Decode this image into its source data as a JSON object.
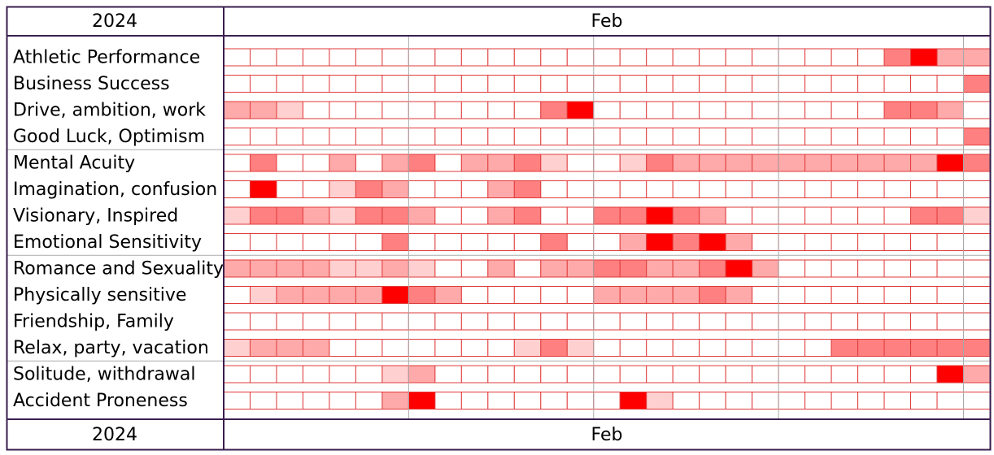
{
  "chart_data": {
    "type": "heatmap",
    "year": "2024",
    "month": "Feb",
    "levels": [
      "#ffffff",
      "#ffd0d0",
      "#ffaaaa",
      "#ff8080",
      "#ff0000"
    ],
    "series": [
      {
        "name": "Athletic Performance",
        "values": [
          0,
          0,
          0,
          0,
          0,
          0,
          0,
          0,
          0,
          0,
          0,
          0,
          0,
          0,
          0,
          0,
          0,
          0,
          0,
          0,
          0,
          0,
          0,
          0,
          0,
          3,
          4,
          2,
          2
        ]
      },
      {
        "name": "Business Success",
        "values": [
          0,
          0,
          0,
          0,
          0,
          0,
          0,
          0,
          0,
          0,
          0,
          0,
          0,
          0,
          0,
          0,
          0,
          0,
          0,
          0,
          0,
          0,
          0,
          0,
          0,
          0,
          0,
          0,
          3
        ]
      },
      {
        "name": "Drive, ambition, work",
        "values": [
          2,
          2,
          1,
          0,
          0,
          0,
          0,
          0,
          0,
          0,
          0,
          0,
          3,
          4,
          0,
          0,
          0,
          0,
          0,
          0,
          0,
          0,
          0,
          0,
          0,
          3,
          3,
          2,
          0
        ]
      },
      {
        "name": "Good Luck, Optimism",
        "values": [
          0,
          0,
          0,
          0,
          0,
          0,
          0,
          0,
          0,
          0,
          0,
          0,
          0,
          0,
          0,
          0,
          0,
          0,
          0,
          0,
          0,
          0,
          0,
          0,
          0,
          0,
          0,
          0,
          3
        ]
      },
      {
        "name": "Mental Acuity",
        "values": [
          0,
          3,
          0,
          0,
          2,
          0,
          2,
          3,
          0,
          2,
          2,
          3,
          1,
          0,
          0,
          1,
          3,
          2,
          2,
          2,
          2,
          2,
          2,
          2,
          2,
          2,
          2,
          4,
          3
        ]
      },
      {
        "name": "Imagination, confusion",
        "values": [
          0,
          4,
          0,
          0,
          1,
          3,
          2,
          0,
          0,
          0,
          2,
          3,
          0,
          0,
          0,
          0,
          0,
          0,
          0,
          0,
          0,
          0,
          0,
          0,
          0,
          0,
          0,
          0,
          0
        ]
      },
      {
        "name": "Visionary, Inspired",
        "values": [
          1,
          3,
          3,
          2,
          1,
          3,
          3,
          2,
          0,
          0,
          2,
          3,
          0,
          0,
          3,
          3,
          4,
          3,
          2,
          0,
          0,
          0,
          0,
          0,
          0,
          0,
          3,
          3,
          1
        ]
      },
      {
        "name": "Emotional Sensitivity",
        "values": [
          0,
          0,
          0,
          0,
          0,
          0,
          3,
          0,
          0,
          0,
          0,
          0,
          3,
          0,
          0,
          2,
          4,
          3,
          4,
          2,
          0,
          0,
          0,
          0,
          0,
          0,
          0,
          0,
          0
        ]
      },
      {
        "name": "Romance and Sexuality",
        "values": [
          2,
          2,
          2,
          2,
          1,
          1,
          2,
          1,
          0,
          0,
          2,
          0,
          2,
          2,
          3,
          3,
          2,
          2,
          3,
          4,
          2,
          0,
          0,
          0,
          0,
          0,
          0,
          0,
          0
        ]
      },
      {
        "name": "Physically sensitive",
        "values": [
          0,
          1,
          2,
          2,
          2,
          2,
          4,
          3,
          2,
          0,
          0,
          0,
          0,
          0,
          2,
          2,
          2,
          2,
          3,
          2,
          0,
          0,
          0,
          0,
          0,
          0,
          0,
          0,
          0
        ]
      },
      {
        "name": "Friendship, Family",
        "values": [
          0,
          0,
          0,
          0,
          0,
          0,
          0,
          0,
          0,
          0,
          0,
          0,
          0,
          0,
          0,
          0,
          0,
          0,
          0,
          0,
          0,
          0,
          0,
          0,
          0,
          0,
          0,
          0,
          0
        ]
      },
      {
        "name": "Relax, party, vacation",
        "values": [
          1,
          2,
          2,
          2,
          0,
          0,
          0,
          0,
          0,
          0,
          0,
          1,
          3,
          1,
          0,
          0,
          0,
          0,
          0,
          0,
          0,
          0,
          0,
          3,
          3,
          3,
          3,
          3,
          3
        ]
      },
      {
        "name": "Solitude, withdrawal",
        "values": [
          0,
          0,
          0,
          0,
          0,
          0,
          1,
          2,
          0,
          0,
          0,
          0,
          0,
          0,
          0,
          0,
          0,
          0,
          0,
          0,
          0,
          0,
          0,
          0,
          0,
          0,
          0,
          4,
          2
        ]
      },
      {
        "name": "Accident Proneness",
        "values": [
          0,
          0,
          0,
          0,
          0,
          0,
          2,
          4,
          0,
          0,
          0,
          0,
          0,
          0,
          0,
          4,
          1,
          0,
          0,
          0,
          0,
          0,
          0,
          0,
          0,
          0,
          0,
          0,
          0
        ]
      }
    ]
  }
}
